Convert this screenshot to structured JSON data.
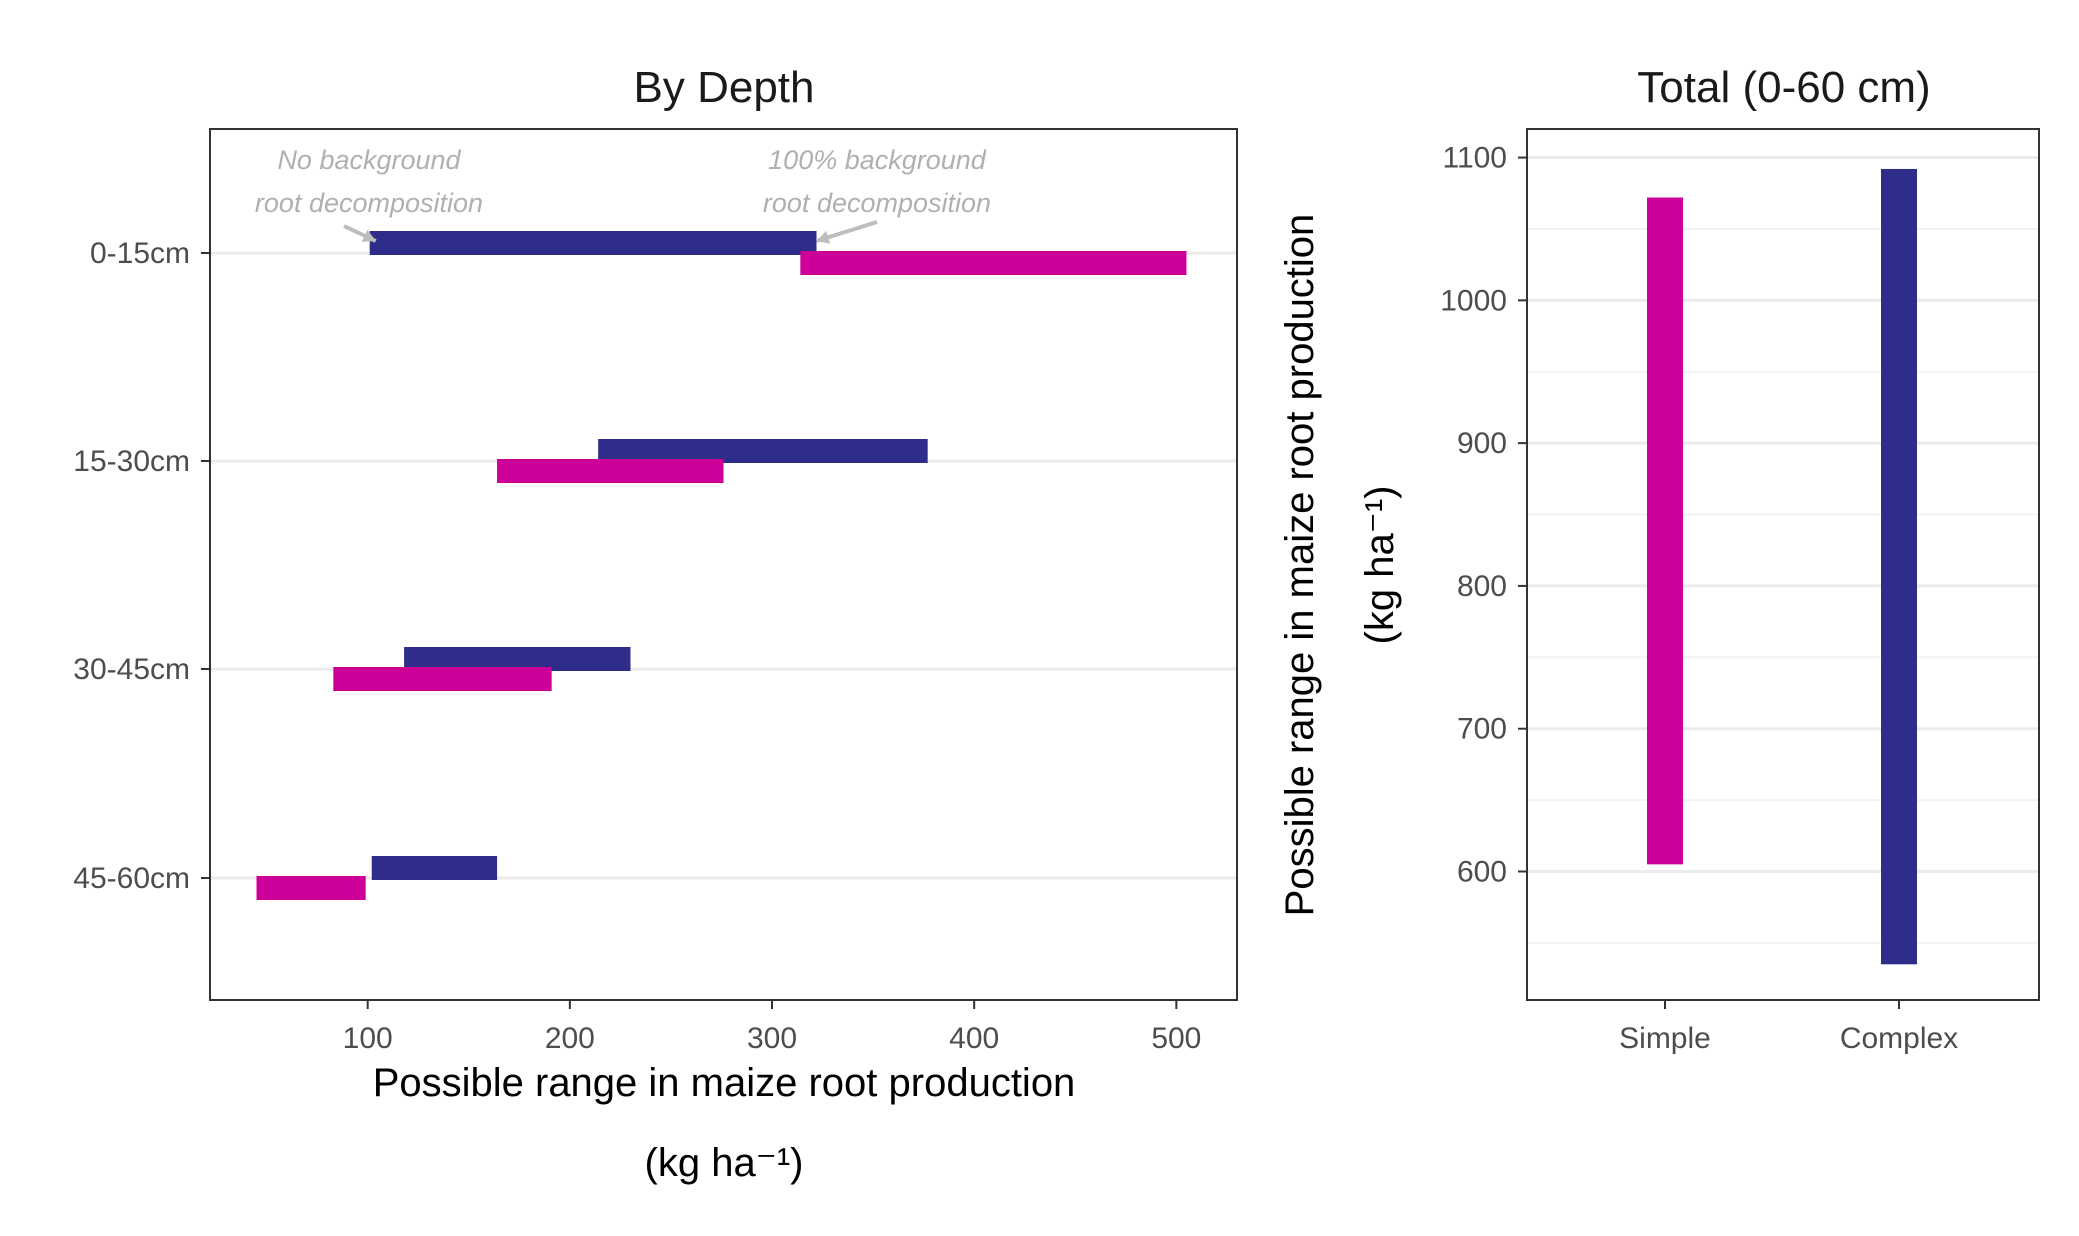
{
  "chart_data": [
    {
      "type": "range-bar",
      "orientation": "horizontal",
      "title": "By Depth",
      "xlabel": "Possible range in maize root production",
      "xlabel_unit": "(kg  ha⁻¹)",
      "xlim": [
        22,
        530
      ],
      "x_ticks": [
        100,
        200,
        300,
        400,
        500
      ],
      "categories": [
        "0-15cm",
        "15-30cm",
        "30-45cm",
        "45-60cm"
      ],
      "grid": true,
      "series": [
        {
          "color": "#2e2d8a",
          "ranges": [
            [
              101,
              322
            ],
            [
              214,
              377
            ],
            [
              118,
              230
            ],
            [
              102,
              164
            ]
          ]
        },
        {
          "color": "#cc0099",
          "ranges": [
            [
              314,
              505
            ],
            [
              164,
              276
            ],
            [
              83,
              191
            ],
            [
              45,
              99
            ]
          ]
        }
      ],
      "annotations": [
        {
          "line1": "No background",
          "line2": "root decomposition"
        },
        {
          "line1": "100% background",
          "line2": "root decomposition"
        }
      ]
    },
    {
      "type": "range-bar",
      "orientation": "vertical",
      "title": "Total (0-60 cm)",
      "ylabel": "Possible range in maize root production",
      "ylabel_unit": "(kg  ha⁻¹)",
      "ylim": [
        510,
        1120
      ],
      "y_ticks": [
        600,
        700,
        800,
        900,
        1000,
        1100
      ],
      "categories": [
        "Simple",
        "Complex"
      ],
      "grid": true,
      "ranges": [
        {
          "category": "Simple",
          "low": 605,
          "high": 1072,
          "color": "#cc0099"
        },
        {
          "category": "Complex",
          "low": 535,
          "high": 1092,
          "color": "#2e2d8a"
        }
      ]
    }
  ]
}
